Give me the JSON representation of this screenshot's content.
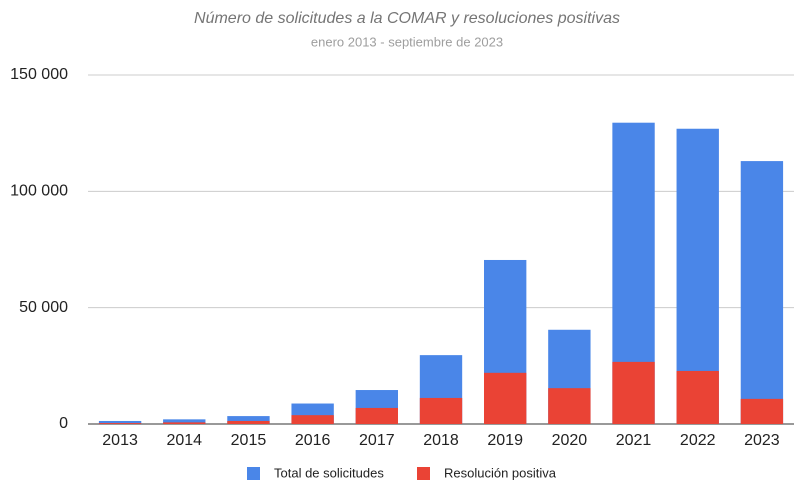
{
  "chart_data": {
    "type": "bar",
    "title": "Número de solicitudes a la COMAR y resoluciones positivas",
    "subtitle": "enero 2013 - septiembre de 2023",
    "categories": [
      "2013",
      "2014",
      "2015",
      "2016",
      "2017",
      "2018",
      "2019",
      "2020",
      "2021",
      "2022",
      "2023"
    ],
    "series": [
      {
        "name": "Total de solicitudes",
        "color": "#4a86e8",
        "values": [
          1300,
          2000,
          3400,
          8800,
          14600,
          29600,
          70500,
          40500,
          129500,
          126900,
          113000
        ]
      },
      {
        "name": "Resolución positiva",
        "color": "#ea4335",
        "values": [
          400,
          700,
          1300,
          3800,
          6900,
          11200,
          22000,
          15400,
          26700,
          22800,
          10800
        ]
      }
    ],
    "ylim": [
      0,
      150000
    ],
    "yticks": [
      0,
      {
        "value": 50000,
        "label": "50 000"
      },
      {
        "value": 100000,
        "label": "100 000"
      },
      {
        "value": 150000,
        "label": "150 000"
      }
    ],
    "grid": true,
    "legend": "bottom"
  }
}
